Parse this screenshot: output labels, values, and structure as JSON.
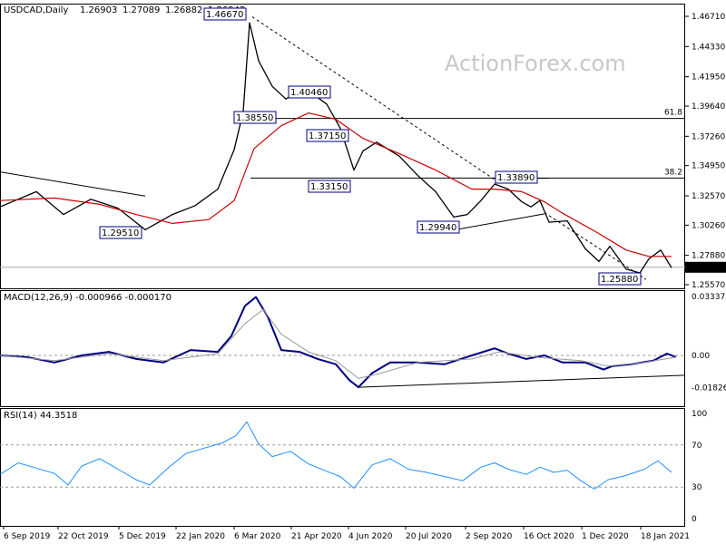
{
  "chart_data": [
    {
      "type": "line",
      "symbol": "USDCAD,Daily",
      "ohlc": [
        "1.26903",
        "1.27089",
        "1.26882",
        "1.26942"
      ],
      "watermark": "ActionForex.com",
      "x_labels": [
        "6 Sep 2019",
        "22 Oct 2019",
        "5 Dec 2019",
        "22 Jan 2020",
        "6 Mar 2020",
        "21 Apr 2020",
        "4 Jun 2020",
        "20 Jul 2020",
        "2 Sep 2020",
        "16 Oct 2020",
        "1 Dec 2020",
        "18 Jan 2021"
      ],
      "y_ticks": [
        "1.46710",
        "1.44330",
        "1.41950",
        "1.39640",
        "1.37260",
        "1.34950",
        "1.32570",
        "1.30260",
        "1.27880",
        "1.25570"
      ],
      "ylim": [
        1.2557,
        1.4671
      ],
      "last_price": "1.26942",
      "fib_levels": [
        {
          "label": "61.8",
          "value": 1.3867
        },
        {
          "label": "38.2",
          "value": 1.3397
        }
      ],
      "annotations": [
        "1.46670",
        "1.40460",
        "1.38550",
        "1.37150",
        "1.33150",
        "1.29510",
        "1.29940",
        "1.33890",
        "1.25880"
      ],
      "series": [
        {
          "key": "price",
          "color": "#000000",
          "points": [
            [
              0,
              1.317
            ],
            [
              40,
              1.329
            ],
            [
              70,
              1.311
            ],
            [
              100,
              1.323
            ],
            [
              130,
              1.316
            ],
            [
              160,
              1.299
            ],
            [
              190,
              1.311
            ],
            [
              215,
              1.318
            ],
            [
              240,
              1.331
            ],
            [
              258,
              1.362
            ],
            [
              268,
              1.392
            ],
            [
              275,
              1.462
            ],
            [
              285,
              1.432
            ],
            [
              300,
              1.412
            ],
            [
              315,
              1.402
            ],
            [
              335,
              1.411
            ],
            [
              360,
              1.398
            ],
            [
              375,
              1.379
            ],
            [
              390,
              1.346
            ],
            [
              400,
              1.361
            ],
            [
              415,
              1.368
            ],
            [
              440,
              1.357
            ],
            [
              460,
              1.342
            ],
            [
              480,
              1.329
            ],
            [
              500,
              1.309
            ],
            [
              515,
              1.311
            ],
            [
              530,
              1.322
            ],
            [
              545,
              1.335
            ],
            [
              560,
              1.331
            ],
            [
              575,
              1.321
            ],
            [
              585,
              1.317
            ],
            [
              595,
              1.322
            ],
            [
              605,
              1.305
            ],
            [
              625,
              1.306
            ],
            [
              645,
              1.284
            ],
            [
              660,
              1.274
            ],
            [
              672,
              1.286
            ],
            [
              690,
              1.268
            ],
            [
              705,
              1.265
            ],
            [
              715,
              1.276
            ],
            [
              728,
              1.283
            ],
            [
              740,
              1.269
            ]
          ]
        },
        {
          "key": "ma",
          "color": "#cc0000",
          "points": [
            [
              0,
              1.322
            ],
            [
              60,
              1.324
            ],
            [
              110,
              1.319
            ],
            [
              150,
              1.311
            ],
            [
              190,
              1.304
            ],
            [
              230,
              1.307
            ],
            [
              258,
              1.322
            ],
            [
              280,
              1.363
            ],
            [
              310,
              1.381
            ],
            [
              340,
              1.391
            ],
            [
              370,
              1.386
            ],
            [
              400,
              1.371
            ],
            [
              440,
              1.359
            ],
            [
              480,
              1.346
            ],
            [
              520,
              1.331
            ],
            [
              545,
              1.331
            ],
            [
              575,
              1.329
            ],
            [
              600,
              1.321
            ],
            [
              620,
              1.312
            ],
            [
              660,
              1.296
            ],
            [
              690,
              1.283
            ],
            [
              715,
              1.278
            ],
            [
              740,
              1.278
            ]
          ]
        }
      ]
    },
    {
      "type": "line",
      "title": "MACD(12,26,9) -0.000966 -0.000170",
      "y_ticks": [
        "0.03337",
        "0.00",
        "-0.018262"
      ],
      "ylim": [
        -0.0246,
        0.0333
      ],
      "series": [
        {
          "key": "macd",
          "color": "#000080",
          "points": [
            [
              0,
              0.0
            ],
            [
              30,
              -0.001
            ],
            [
              60,
              -0.004
            ],
            [
              90,
              0.0
            ],
            [
              120,
              0.002
            ],
            [
              150,
              -0.002
            ],
            [
              180,
              -0.004
            ],
            [
              210,
              0.003
            ],
            [
              240,
              0.002
            ],
            [
              255,
              0.011
            ],
            [
              270,
              0.028
            ],
            [
              282,
              0.033
            ],
            [
              295,
              0.022
            ],
            [
              310,
              0.003
            ],
            [
              330,
              0.002
            ],
            [
              350,
              -0.002
            ],
            [
              370,
              -0.005
            ],
            [
              385,
              -0.014
            ],
            [
              395,
              -0.018
            ],
            [
              410,
              -0.01
            ],
            [
              430,
              -0.004
            ],
            [
              460,
              -0.004
            ],
            [
              490,
              -0.005
            ],
            [
              520,
              0.0
            ],
            [
              545,
              0.004
            ],
            [
              560,
              0.001
            ],
            [
              580,
              -0.002
            ],
            [
              600,
              0.0
            ],
            [
              620,
              -0.004
            ],
            [
              645,
              -0.004
            ],
            [
              665,
              -0.008
            ],
            [
              675,
              -0.006
            ],
            [
              695,
              -0.005
            ],
            [
              720,
              -0.003
            ],
            [
              735,
              0.001
            ],
            [
              745,
              -0.001
            ]
          ]
        },
        {
          "key": "signal",
          "color": "#999999",
          "points": [
            [
              0,
              0.0
            ],
            [
              60,
              -0.003
            ],
            [
              120,
              0.001
            ],
            [
              180,
              -0.003
            ],
            [
              240,
              0.001
            ],
            [
              270,
              0.018
            ],
            [
              290,
              0.026
            ],
            [
              310,
              0.012
            ],
            [
              340,
              0.002
            ],
            [
              370,
              -0.003
            ],
            [
              395,
              -0.013
            ],
            [
              420,
              -0.01
            ],
            [
              460,
              -0.004
            ],
            [
              520,
              -0.002
            ],
            [
              550,
              0.002
            ],
            [
              590,
              -0.001
            ],
            [
              640,
              -0.003
            ],
            [
              670,
              -0.006
            ],
            [
              710,
              -0.004
            ],
            [
              745,
              -0.001
            ]
          ]
        }
      ],
      "trendline": [
        [
          395,
          -0.018
        ],
        [
          755,
          -0.0112
        ]
      ]
    },
    {
      "type": "line",
      "title": "RSI(14) 44.3518",
      "y_ticks": [
        "100",
        "70",
        "30",
        "0"
      ],
      "ylim": [
        0,
        100
      ],
      "levels": [
        70,
        30
      ],
      "series": [
        {
          "key": "rsi",
          "color": "#1e90ff",
          "points": [
            [
              0,
              42
            ],
            [
              20,
              53
            ],
            [
              40,
              48
            ],
            [
              60,
              43
            ],
            [
              75,
              32
            ],
            [
              90,
              50
            ],
            [
              110,
              57
            ],
            [
              130,
              47
            ],
            [
              150,
              37
            ],
            [
              165,
              32
            ],
            [
              185,
              48
            ],
            [
              205,
              62
            ],
            [
              225,
              67
            ],
            [
              245,
              72
            ],
            [
              260,
              79
            ],
            [
              272,
              92
            ],
            [
              285,
              71
            ],
            [
              300,
              59
            ],
            [
              320,
              64
            ],
            [
              340,
              52
            ],
            [
              360,
              45
            ],
            [
              375,
              40
            ],
            [
              390,
              29
            ],
            [
              410,
              51
            ],
            [
              430,
              57
            ],
            [
              450,
              47
            ],
            [
              470,
              44
            ],
            [
              490,
              40
            ],
            [
              510,
              36
            ],
            [
              530,
              49
            ],
            [
              545,
              53
            ],
            [
              560,
              47
            ],
            [
              580,
              42
            ],
            [
              595,
              49
            ],
            [
              610,
              44
            ],
            [
              625,
              46
            ],
            [
              640,
              36
            ],
            [
              655,
              28
            ],
            [
              670,
              37
            ],
            [
              690,
              41
            ],
            [
              710,
              47
            ],
            [
              725,
              55
            ],
            [
              740,
              44
            ]
          ]
        }
      ]
    }
  ]
}
